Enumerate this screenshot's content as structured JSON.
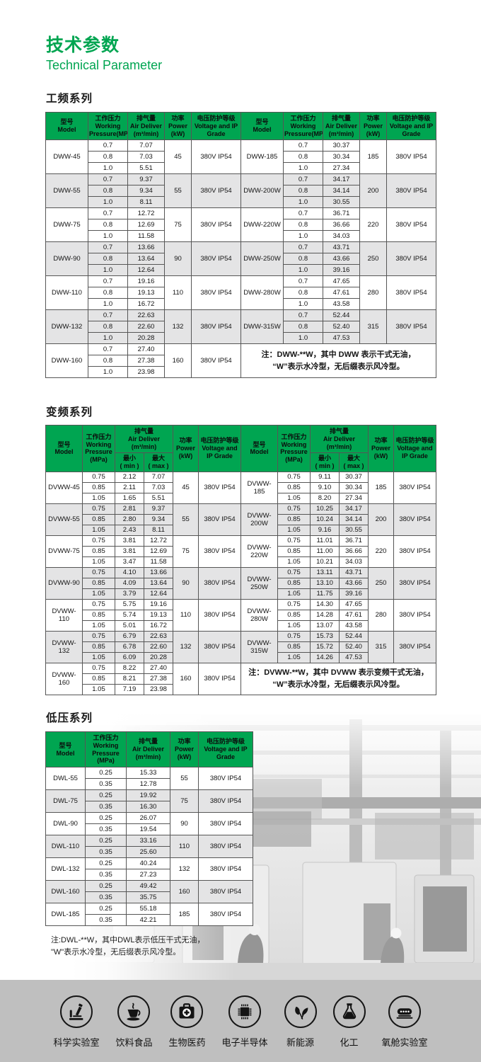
{
  "page": {
    "title_cn": "技术参数",
    "title_en": "Technical Parameter"
  },
  "colors": {
    "accent_green": "#00A551",
    "row_alt": "#e4e4e5",
    "footer_band": "#bfbfbf"
  },
  "sections": {
    "fixed": {
      "heading": "工频系列",
      "header": {
        "model": "型号\nModel",
        "pressure": "工作压力\nWorking\nPressure(MPa)",
        "air": "排气量\nAir Deliver\n(m³/min)",
        "power_a": "功率\nPower\n(kW)",
        "power_b": "功率 Power\n(kW)",
        "ip": "电压防护等级\nVoltage and IP\nGrade"
      },
      "pressures": [
        "0.7",
        "0.8",
        "1.0"
      ],
      "groups": [
        {
          "rows": [
            {
              "model": "DWW-45",
              "air": [
                "7.07",
                "7.03",
                "5.51"
              ],
              "power": "45",
              "ip": "380V IP54"
            },
            {
              "model": "DWW-55",
              "air": [
                "9.37",
                "9.34",
                "8.11"
              ],
              "power": "55",
              "ip": "380V IP54"
            },
            {
              "model": "DWW-75",
              "air": [
                "12.72",
                "12.69",
                "11.58"
              ],
              "power": "75",
              "ip": "380V IP54"
            },
            {
              "model": "DWW-90",
              "air": [
                "13.66",
                "13.64",
                "12.64"
              ],
              "power": "90",
              "ip": "380V IP54"
            },
            {
              "model": "DWW-110",
              "air": [
                "19.16",
                "19.13",
                "16.72"
              ],
              "power": "110",
              "ip": "380V IP54"
            },
            {
              "model": "DWW-132",
              "air": [
                "22.63",
                "22.60",
                "20.28"
              ],
              "power": "132",
              "ip": "380V IP54"
            },
            {
              "model": "DWW-160",
              "air": [
                "27.40",
                "27.38",
                "23.98"
              ],
              "power": "160",
              "ip": "380V IP54"
            }
          ]
        },
        {
          "rows": [
            {
              "model": "DWW-185",
              "air": [
                "30.37",
                "30.34",
                "27.34"
              ],
              "power": "185",
              "ip": "380V IP54"
            },
            {
              "model": "DWW-200W",
              "air": [
                "34.17",
                "34.14",
                "30.55"
              ],
              "power": "200",
              "ip": "380V IP54"
            },
            {
              "model": "DWW-220W",
              "air": [
                "36.71",
                "36.66",
                "34.03"
              ],
              "power": "220",
              "ip": "380V IP54"
            },
            {
              "model": "DWW-250W",
              "air": [
                "43.71",
                "43.66",
                "39.16"
              ],
              "power": "250",
              "ip": "380V IP54"
            },
            {
              "model": "DWW-280W",
              "air": [
                "47.65",
                "47.61",
                "43.58"
              ],
              "power": "280",
              "ip": "380V IP54"
            },
            {
              "model": "DWW-315W",
              "air": [
                "52.44",
                "52.40",
                "47.53"
              ],
              "power": "315",
              "ip": "380V IP54"
            }
          ],
          "note": "注：DWW-**W，其中 DWW 表示干式无油，\n“W”表示水冷型，无后缀表示风冷型。"
        }
      ]
    },
    "variable": {
      "heading": "变频系列",
      "header": {
        "model": "型号\nModel",
        "pressure": "工作压力\nWorking\nPressure\n(MPa)",
        "air": "排气量\nAir Deliver\n(m³/min)",
        "min": "最小\n( min )",
        "max": "最大\n( max )",
        "power_a": "功率\nPower\n(kW)",
        "power_b": "功率 Power\n(kW)",
        "ip": "电压防护等级\nVoltage and\nIP Grade"
      },
      "pressures": [
        "0.75",
        "0.85",
        "1.05"
      ],
      "groups": [
        {
          "rows": [
            {
              "model": "DVWW-45",
              "min": [
                "2.12",
                "2.11",
                "1.65"
              ],
              "max": [
                "7.07",
                "7.03",
                "5.51"
              ],
              "power": "45",
              "ip": "380V IP54"
            },
            {
              "model": "DVWW-55",
              "min": [
                "2.81",
                "2.80",
                "2.43"
              ],
              "max": [
                "9.37",
                "9.34",
                "8.11"
              ],
              "power": "55",
              "ip": "380V IP54"
            },
            {
              "model": "DVWW-75",
              "min": [
                "3.81",
                "3.81",
                "3.47"
              ],
              "max": [
                "12.72",
                "12.69",
                "11.58"
              ],
              "power": "75",
              "ip": "380V IP54"
            },
            {
              "model": "DVWW-90",
              "min": [
                "4.10",
                "4.09",
                "3.79"
              ],
              "max": [
                "13.66",
                "13.64",
                "12.64"
              ],
              "power": "90",
              "ip": "380V IP54"
            },
            {
              "model": "DVWW-110",
              "min": [
                "5.75",
                "5.74",
                "5.01"
              ],
              "max": [
                "19.16",
                "19.13",
                "16.72"
              ],
              "power": "110",
              "ip": "380V IP54"
            },
            {
              "model": "DVWW-132",
              "min": [
                "6.79",
                "6.78",
                "6.09"
              ],
              "max": [
                "22.63",
                "22.60",
                "20.28"
              ],
              "power": "132",
              "ip": "380V IP54"
            },
            {
              "model": "DVWW-160",
              "min": [
                "8.22",
                "8.21",
                "7.19"
              ],
              "max": [
                "27.40",
                "27.38",
                "23.98"
              ],
              "power": "160",
              "ip": "380V IP54"
            }
          ]
        },
        {
          "rows": [
            {
              "model": "DVWW-185",
              "min": [
                "9.11",
                "9.10",
                "8.20"
              ],
              "max": [
                "30.37",
                "30.34",
                "27.34"
              ],
              "power": "185",
              "ip": "380V IP54"
            },
            {
              "model": "DVWW-200W",
              "min": [
                "10.25",
                "10.24",
                "9.16"
              ],
              "max": [
                "34.17",
                "34.14",
                "30.55"
              ],
              "power": "200",
              "ip": "380V IP54"
            },
            {
              "model": "DVWW-220W",
              "min": [
                "11.01",
                "11.00",
                "10.21"
              ],
              "max": [
                "36.71",
                "36.66",
                "34.03"
              ],
              "power": "220",
              "ip": "380V IP54"
            },
            {
              "model": "DVWW-250W",
              "min": [
                "13.11",
                "13.10",
                "11.75"
              ],
              "max": [
                "43.71",
                "43.66",
                "39.16"
              ],
              "power": "250",
              "ip": "380V IP54"
            },
            {
              "model": "DVWW-280W",
              "min": [
                "14.30",
                "14.28",
                "13.07"
              ],
              "max": [
                "47.65",
                "47.61",
                "43.58"
              ],
              "power": "280",
              "ip": "380V IP54"
            },
            {
              "model": "DVWW-315W",
              "min": [
                "15.73",
                "15.72",
                "14.26"
              ],
              "max": [
                "52.44",
                "52.40",
                "47.53"
              ],
              "power": "315",
              "ip": "380V IP54"
            }
          ],
          "note": "注：DVWW-**W，其中 DVWW 表示变频干式无油，\n“W”表示水冷型，无后缀表示风冷型。"
        }
      ]
    },
    "low": {
      "heading": "低压系列",
      "header": {
        "model": "型号\nModel",
        "pressure": "工作压力\nWorking\nPressure\n(MPa)",
        "air": "排气量\nAir Deliver\n(m³/min)",
        "power": "功率\nPower\n(kW)",
        "ip": "电压防护等级\nVoltage and IP\nGrade"
      },
      "pressures": [
        "0.25",
        "0.35"
      ],
      "rows": [
        {
          "model": "DWL-55",
          "air": [
            "15.33",
            "12.78"
          ],
          "power": "55",
          "ip": "380V IP54"
        },
        {
          "model": "DWL-75",
          "air": [
            "19.92",
            "16.30"
          ],
          "power": "75",
          "ip": "380V IP54"
        },
        {
          "model": "DWL-90",
          "air": [
            "26.07",
            "19.54"
          ],
          "power": "90",
          "ip": "380V IP54"
        },
        {
          "model": "DWL-110",
          "air": [
            "33.16",
            "25.60"
          ],
          "power": "110",
          "ip": "380V IP54"
        },
        {
          "model": "DWL-132",
          "air": [
            "40.24",
            "27.23"
          ],
          "power": "132",
          "ip": "380V IP54"
        },
        {
          "model": "DWL-160",
          "air": [
            "49.42",
            "35.75"
          ],
          "power": "160",
          "ip": "380V IP54"
        },
        {
          "model": "DWL-185",
          "air": [
            "55.18",
            "42.21"
          ],
          "power": "185",
          "ip": "380V IP54"
        }
      ],
      "note": "注:DWL-**W，其中DWL表示低压干式无油，\n\"W\"表示水冷型，无后缀表示风冷型。"
    }
  },
  "footer": {
    "icons": [
      {
        "icon": "microscope-icon",
        "label": "科学实验室"
      },
      {
        "icon": "coffee-cup-icon",
        "label": "饮料食品"
      },
      {
        "icon": "first-aid-kit-icon",
        "label": "生物医药"
      },
      {
        "icon": "chip-icon",
        "label": "电子半导体"
      },
      {
        "icon": "leaves-icon",
        "label": "新能源"
      },
      {
        "icon": "flask-icon",
        "label": "化工"
      },
      {
        "icon": "oxygen-chamber-icon",
        "label": "氧舱实验室"
      }
    ]
  }
}
